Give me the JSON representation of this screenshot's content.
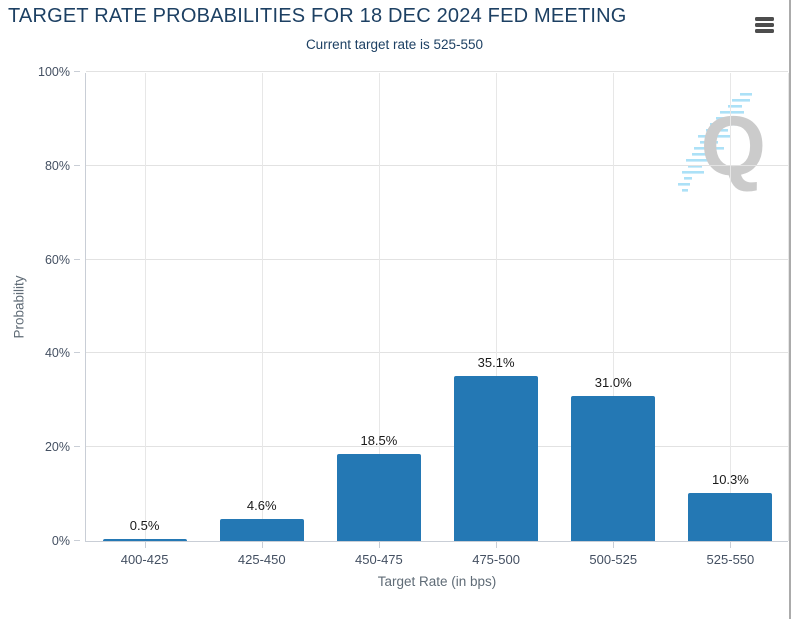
{
  "header": {
    "menu_icon": "hamburger-icon"
  },
  "watermark": {
    "text": "Q",
    "name": "quikstrike-logo"
  },
  "colors": {
    "bar": "#2478b4",
    "title_text": "#1d4063",
    "tick_label": "#445062",
    "axis_title": "#5f6b76",
    "data_label": "#1a1a1a",
    "gridline": "#e2e2e2",
    "axis_line": "#c9ced6",
    "panel_border": "#ababab",
    "watermark_q": "#cbcbcb",
    "watermark_streak": "#9edcf6"
  },
  "chart_data": {
    "type": "bar",
    "title": "TARGET RATE PROBABILITIES FOR 18 DEC 2024 FED MEETING",
    "subtitle": "Current target rate is 525-550",
    "categories": [
      "400-425",
      "425-450",
      "450-475",
      "475-500",
      "500-525",
      "525-550"
    ],
    "values": [
      0.5,
      4.6,
      18.5,
      35.1,
      31.0,
      10.3
    ],
    "data_labels": [
      "0.5%",
      "4.6%",
      "18.5%",
      "35.1%",
      "31.0%",
      "10.3%"
    ],
    "xlabel": "Target Rate (in bps)",
    "ylabel": "Probability",
    "ylim": [
      0,
      100
    ],
    "yticks": [
      0,
      20,
      40,
      60,
      80,
      100
    ],
    "ytick_labels": [
      "0%",
      "20%",
      "40%",
      "60%",
      "80%",
      "100%"
    ],
    "grid": true,
    "legend": false,
    "bar_color": "#2478b4"
  }
}
